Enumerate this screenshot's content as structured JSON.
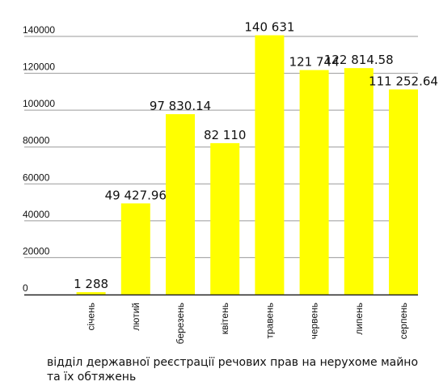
{
  "chart_data": {
    "type": "bar",
    "title": "",
    "xlabel": "",
    "ylabel": "",
    "categories": [
      "січень",
      "лютий",
      "березень",
      "квітень",
      "травень",
      "червень",
      "липень",
      "серпень"
    ],
    "values": [
      1288,
      49427.96,
      97830.14,
      82110,
      140631,
      121744,
      122814.58,
      111252.64
    ],
    "data_labels": [
      "1 288",
      "49 427.96",
      "97 830.14",
      "82 110",
      "140 631",
      "121 744",
      "122 814.58",
      "111 252.64"
    ],
    "yticks": [
      0,
      20000,
      40000,
      60000,
      80000,
      100000,
      120000,
      140000
    ],
    "ylim": [
      0,
      140000
    ],
    "grid": true,
    "legend": "none",
    "bar_color": "#ffff00",
    "caption": "відділ державної реєстрації речових прав на нерухоме майно та їх обтяжень"
  }
}
